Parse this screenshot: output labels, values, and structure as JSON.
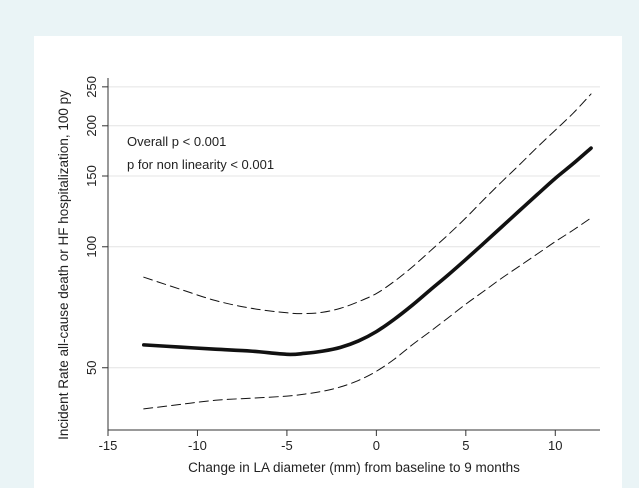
{
  "chart_data": {
    "type": "line",
    "xlabel": "Change in LA diameter (mm) from baseline to 9 months",
    "ylabel": "Incident Rate all-cause death or HF hospitalization, 100 py",
    "y_scale": "log",
    "xlim": [
      -15,
      12.5
    ],
    "ylim": [
      35,
      260
    ],
    "x_ticks": [
      -15,
      -10,
      -5,
      0,
      5,
      10
    ],
    "y_ticks": [
      50,
      100,
      150,
      200,
      250
    ],
    "grid": "horizontal",
    "annotations": [
      "Overall p < 0.001",
      "p for non linearity < 0.001"
    ],
    "series": [
      {
        "style": "solid",
        "x": [
          -13,
          -11,
          -9,
          -7,
          -5,
          -4,
          -3,
          -2,
          -1,
          0,
          1,
          2,
          3,
          4,
          5,
          6,
          7,
          8,
          9,
          10,
          11,
          12
        ],
        "values": [
          57,
          56.3,
          55.6,
          55,
          54,
          54.3,
          55,
          56.2,
          58.3,
          61.5,
          66,
          71.5,
          78,
          85,
          93,
          102,
          112,
          123,
          135,
          148,
          161,
          176
        ]
      },
      {
        "style": "dashed",
        "x": [
          -13,
          -11,
          -9,
          -7,
          -5,
          -4,
          -3,
          -2,
          -1,
          0,
          1,
          2,
          3,
          4,
          5,
          6,
          7,
          8,
          9,
          10,
          11,
          12
        ],
        "values": [
          84,
          78.5,
          73.5,
          70.3,
          68.5,
          68.2,
          68.7,
          70.3,
          73,
          76.5,
          82,
          89,
          97.5,
          107,
          118,
          131,
          145,
          160,
          177,
          195,
          215,
          240
        ]
      },
      {
        "style": "dashed",
        "x": [
          -13,
          -11,
          -9,
          -7,
          -5,
          -4,
          -3,
          -2,
          -1,
          0,
          1,
          2,
          3,
          4,
          5,
          6,
          7,
          8,
          9,
          10,
          11,
          12
        ],
        "values": [
          39.5,
          40.5,
          41.5,
          42,
          42.5,
          43,
          43.7,
          44.8,
          46.5,
          49,
          52.5,
          57,
          61.5,
          66.5,
          72,
          77.5,
          83.5,
          89.5,
          96,
          103,
          110,
          118
        ]
      }
    ]
  }
}
